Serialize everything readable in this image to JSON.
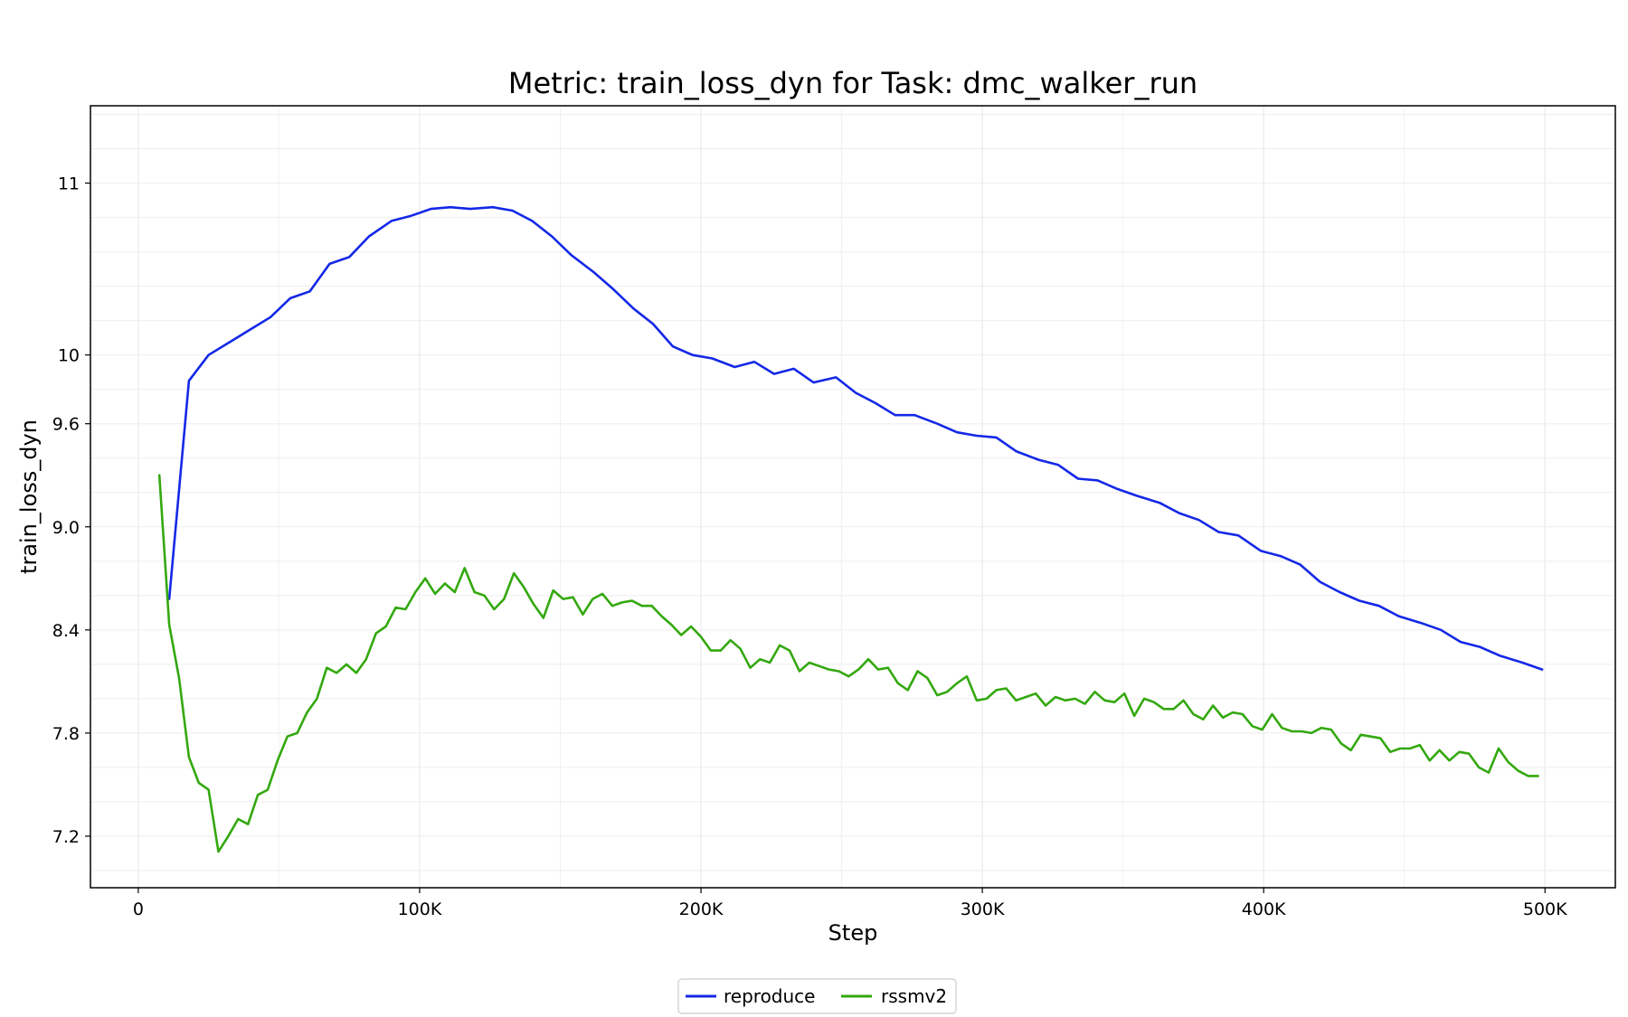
{
  "chart_data": {
    "type": "line",
    "title": "Metric: train_loss_dyn for Task: dmc_walker_run",
    "xlabel": "Step",
    "ylabel": "train_loss_dyn",
    "xlim": [
      -17000,
      525000
    ],
    "ylim": [
      6.9,
      11.45
    ],
    "x_ticks": [
      0,
      100000,
      200000,
      300000,
      400000,
      500000
    ],
    "x_tick_labels": [
      "0",
      "100K",
      "200K",
      "300K",
      "400K",
      "500K"
    ],
    "y_ticks": [
      7.2,
      7.8,
      8.4,
      9.0,
      9.6,
      10,
      11
    ],
    "y_tick_labels": [
      "7.2",
      "7.8",
      "8.4",
      "9.0",
      "9.6",
      "10",
      "11"
    ],
    "grid": true,
    "legend_position": "bottom-center",
    "series": [
      {
        "name": "reproduce",
        "color": "#1428e6",
        "points": [
          [
            11000,
            8.58
          ],
          [
            18000,
            9.85
          ],
          [
            25000,
            10.0
          ],
          [
            32000,
            10.07
          ],
          [
            40000,
            10.15
          ],
          [
            47000,
            10.22
          ],
          [
            54000,
            10.33
          ],
          [
            61000,
            10.37
          ],
          [
            68000,
            10.53
          ],
          [
            75000,
            10.57
          ],
          [
            82000,
            10.69
          ],
          [
            90000,
            10.78
          ],
          [
            97000,
            10.81
          ],
          [
            104000,
            10.85
          ],
          [
            111000,
            10.86
          ],
          [
            118000,
            10.85
          ],
          [
            126000,
            10.86
          ],
          [
            133000,
            10.84
          ],
          [
            140000,
            10.78
          ],
          [
            147000,
            10.69
          ],
          [
            154000,
            10.58
          ],
          [
            162000,
            10.48
          ],
          [
            169000,
            10.38
          ],
          [
            176000,
            10.27
          ],
          [
            183000,
            10.18
          ],
          [
            190000,
            10.05
          ],
          [
            197000,
            10.0
          ],
          [
            204000,
            9.98
          ],
          [
            212000,
            9.93
          ],
          [
            219000,
            9.96
          ],
          [
            226000,
            9.89
          ],
          [
            233000,
            9.92
          ],
          [
            240000,
            9.84
          ],
          [
            248000,
            9.87
          ],
          [
            255000,
            9.78
          ],
          [
            262000,
            9.72
          ],
          [
            269000,
            9.65
          ],
          [
            276000,
            9.65
          ],
          [
            284000,
            9.6
          ],
          [
            291000,
            9.55
          ],
          [
            298000,
            9.53
          ],
          [
            305000,
            9.52
          ],
          [
            312000,
            9.44
          ],
          [
            320000,
            9.39
          ],
          [
            327000,
            9.36
          ],
          [
            334000,
            9.28
          ],
          [
            341000,
            9.27
          ],
          [
            348000,
            9.22
          ],
          [
            355000,
            9.18
          ],
          [
            363000,
            9.14
          ],
          [
            370000,
            9.08
          ],
          [
            377000,
            9.04
          ],
          [
            384000,
            8.97
          ],
          [
            391000,
            8.95
          ],
          [
            399000,
            8.86
          ],
          [
            406000,
            8.83
          ],
          [
            413000,
            8.78
          ],
          [
            420000,
            8.68
          ],
          [
            427000,
            8.62
          ],
          [
            434000,
            8.57
          ],
          [
            441000,
            8.54
          ],
          [
            448000,
            8.48
          ],
          [
            456000,
            8.44
          ],
          [
            463000,
            8.4
          ],
          [
            470000,
            8.33
          ],
          [
            477000,
            8.3
          ],
          [
            484000,
            8.25
          ],
          [
            492000,
            8.21
          ],
          [
            499000,
            8.17
          ]
        ]
      },
      {
        "name": "rssmv2",
        "color": "#33a80f",
        "points": [
          [
            7500,
            9.3
          ],
          [
            11000,
            8.43
          ],
          [
            14500,
            8.12
          ],
          [
            18000,
            7.66
          ],
          [
            21500,
            7.51
          ],
          [
            25000,
            7.47
          ],
          [
            28500,
            7.11
          ],
          [
            32000,
            7.2
          ],
          [
            35500,
            7.3
          ],
          [
            39000,
            7.27
          ],
          [
            42500,
            7.44
          ],
          [
            46000,
            7.47
          ],
          [
            49500,
            7.64
          ],
          [
            53000,
            7.78
          ],
          [
            56500,
            7.8
          ],
          [
            60000,
            7.92
          ],
          [
            63500,
            8.0
          ],
          [
            67000,
            8.18
          ],
          [
            70500,
            8.15
          ],
          [
            74000,
            8.2
          ],
          [
            77500,
            8.15
          ],
          [
            81000,
            8.23
          ],
          [
            84500,
            8.38
          ],
          [
            88000,
            8.42
          ],
          [
            91500,
            8.53
          ],
          [
            95000,
            8.52
          ],
          [
            98500,
            8.62
          ],
          [
            102000,
            8.7
          ],
          [
            105500,
            8.61
          ],
          [
            109000,
            8.67
          ],
          [
            112500,
            8.62
          ],
          [
            116000,
            8.76
          ],
          [
            119500,
            8.62
          ],
          [
            123000,
            8.6
          ],
          [
            126500,
            8.52
          ],
          [
            130000,
            8.58
          ],
          [
            133500,
            8.73
          ],
          [
            137000,
            8.65
          ],
          [
            140500,
            8.55
          ],
          [
            144000,
            8.47
          ],
          [
            147500,
            8.63
          ],
          [
            151000,
            8.58
          ],
          [
            154500,
            8.59
          ],
          [
            158000,
            8.49
          ],
          [
            161500,
            8.58
          ],
          [
            165000,
            8.61
          ],
          [
            168500,
            8.54
          ],
          [
            172000,
            8.56
          ],
          [
            175500,
            8.57
          ],
          [
            179000,
            8.54
          ],
          [
            182500,
            8.54
          ],
          [
            186000,
            8.48
          ],
          [
            189500,
            8.43
          ],
          [
            193000,
            8.37
          ],
          [
            196500,
            8.42
          ],
          [
            200000,
            8.36
          ],
          [
            203500,
            8.28
          ],
          [
            207000,
            8.28
          ],
          [
            210500,
            8.34
          ],
          [
            214000,
            8.29
          ],
          [
            217500,
            8.18
          ],
          [
            221000,
            8.23
          ],
          [
            224500,
            8.21
          ],
          [
            228000,
            8.31
          ],
          [
            231500,
            8.28
          ],
          [
            235000,
            8.16
          ],
          [
            238500,
            8.21
          ],
          [
            242000,
            8.19
          ],
          [
            245500,
            8.17
          ],
          [
            249000,
            8.16
          ],
          [
            252500,
            8.13
          ],
          [
            256000,
            8.17
          ],
          [
            259500,
            8.23
          ],
          [
            263000,
            8.17
          ],
          [
            266500,
            8.18
          ],
          [
            270000,
            8.09
          ],
          [
            273500,
            8.05
          ],
          [
            277000,
            8.16
          ],
          [
            280500,
            8.12
          ],
          [
            284000,
            8.02
          ],
          [
            287500,
            8.04
          ],
          [
            291000,
            8.09
          ],
          [
            294500,
            8.13
          ],
          [
            298000,
            7.99
          ],
          [
            301500,
            8.0
          ],
          [
            305000,
            8.05
          ],
          [
            308500,
            8.06
          ],
          [
            312000,
            7.99
          ],
          [
            315500,
            8.01
          ],
          [
            319000,
            8.03
          ],
          [
            322500,
            7.96
          ],
          [
            326000,
            8.01
          ],
          [
            329500,
            7.99
          ],
          [
            333000,
            8.0
          ],
          [
            336500,
            7.97
          ],
          [
            340000,
            8.04
          ],
          [
            343500,
            7.99
          ],
          [
            347000,
            7.98
          ],
          [
            350500,
            8.03
          ],
          [
            354000,
            7.9
          ],
          [
            357500,
            8.0
          ],
          [
            361000,
            7.98
          ],
          [
            364500,
            7.94
          ],
          [
            368000,
            7.94
          ],
          [
            371500,
            7.99
          ],
          [
            375000,
            7.91
          ],
          [
            378500,
            7.88
          ],
          [
            382000,
            7.96
          ],
          [
            385500,
            7.89
          ],
          [
            389000,
            7.92
          ],
          [
            392500,
            7.91
          ],
          [
            396000,
            7.84
          ],
          [
            399500,
            7.82
          ],
          [
            403000,
            7.91
          ],
          [
            406500,
            7.83
          ],
          [
            410000,
            7.81
          ],
          [
            413500,
            7.81
          ],
          [
            417000,
            7.8
          ],
          [
            420500,
            7.83
          ],
          [
            424000,
            7.82
          ],
          [
            427500,
            7.74
          ],
          [
            431000,
            7.7
          ],
          [
            434500,
            7.79
          ],
          [
            438000,
            7.78
          ],
          [
            441500,
            7.77
          ],
          [
            445000,
            7.69
          ],
          [
            448500,
            7.71
          ],
          [
            452000,
            7.71
          ],
          [
            455500,
            7.73
          ],
          [
            459000,
            7.64
          ],
          [
            462500,
            7.7
          ],
          [
            466000,
            7.64
          ],
          [
            469500,
            7.69
          ],
          [
            473000,
            7.68
          ],
          [
            476500,
            7.6
          ],
          [
            480000,
            7.57
          ],
          [
            483500,
            7.71
          ],
          [
            487000,
            7.63
          ],
          [
            490500,
            7.58
          ],
          [
            494000,
            7.55
          ],
          [
            497500,
            7.55
          ]
        ]
      }
    ]
  }
}
